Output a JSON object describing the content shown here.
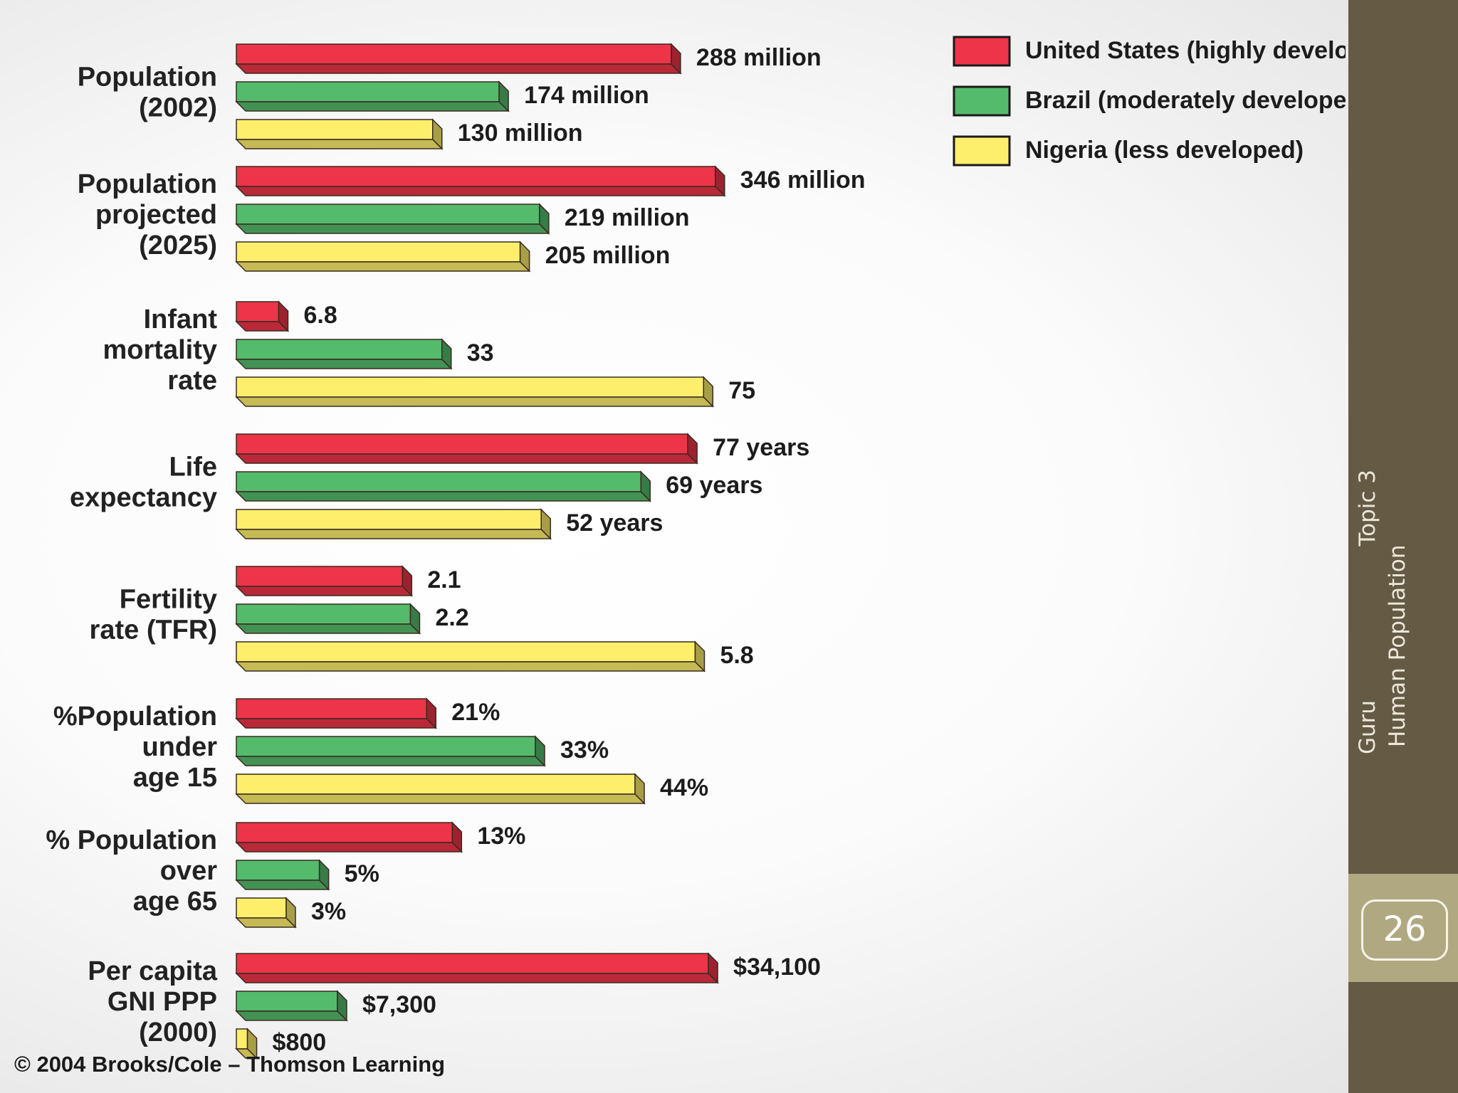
{
  "chart_data": {
    "type": "bar",
    "orientation": "horizontal",
    "grid": false,
    "legend_position": "top-right",
    "categories": [
      "Population (2002)",
      "Population projected (2025)",
      "Infant mortality rate",
      "Life expectancy",
      "Fertility rate (TFR)",
      "%Population under age 15",
      "% Population over age 65",
      "Per capita GNI PPP (2000)"
    ],
    "category_lines": [
      [
        "Population",
        "(2002)"
      ],
      [
        "Population",
        "projected",
        "(2025)"
      ],
      [
        "Infant",
        "mortality",
        "rate"
      ],
      [
        "Life",
        "expectancy"
      ],
      [
        "Fertility",
        "rate (TFR)"
      ],
      [
        "%Population",
        "under",
        "age 15"
      ],
      [
        "% Population",
        "over",
        "age 65"
      ],
      [
        "Per capita",
        "GNI PPP",
        "(2000)"
      ]
    ],
    "series": [
      {
        "name": "United States (highly developed)",
        "color": "#ee3448",
        "values": [
          288,
          346,
          6.8,
          77,
          2.1,
          21,
          13,
          34100
        ],
        "labels": [
          "288 million",
          "346 million",
          "6.8",
          "77 years",
          "2.1",
          "21%",
          "13%",
          "$34,100"
        ]
      },
      {
        "name": "Brazil (moderately developed)",
        "color": "#54bb6c",
        "values": [
          174,
          219,
          33,
          69,
          2.2,
          33,
          5,
          7300
        ],
        "labels": [
          "174 million",
          "219 million",
          "33",
          "69 years",
          "2.2",
          "33%",
          "5%",
          "$7,300"
        ]
      },
      {
        "name": "Nigeria (less developed)",
        "color": "#fdef6c",
        "values": [
          130,
          205,
          75,
          52,
          5.8,
          44,
          3,
          800
        ],
        "labels": [
          "130 million",
          "205 million",
          "75",
          "52 years",
          "5.8",
          "44%",
          "3%",
          "$800"
        ]
      }
    ],
    "category_max": [
      330,
      360,
      80,
      85,
      6.3,
      55,
      30,
      36000
    ]
  },
  "footer": {
    "copyright": "© 2004 Brooks/Cole – Thomson Learning"
  },
  "sidebar": {
    "topic": "Topic 3",
    "title": "Human Population",
    "author": "Guru",
    "page_number": "26"
  }
}
